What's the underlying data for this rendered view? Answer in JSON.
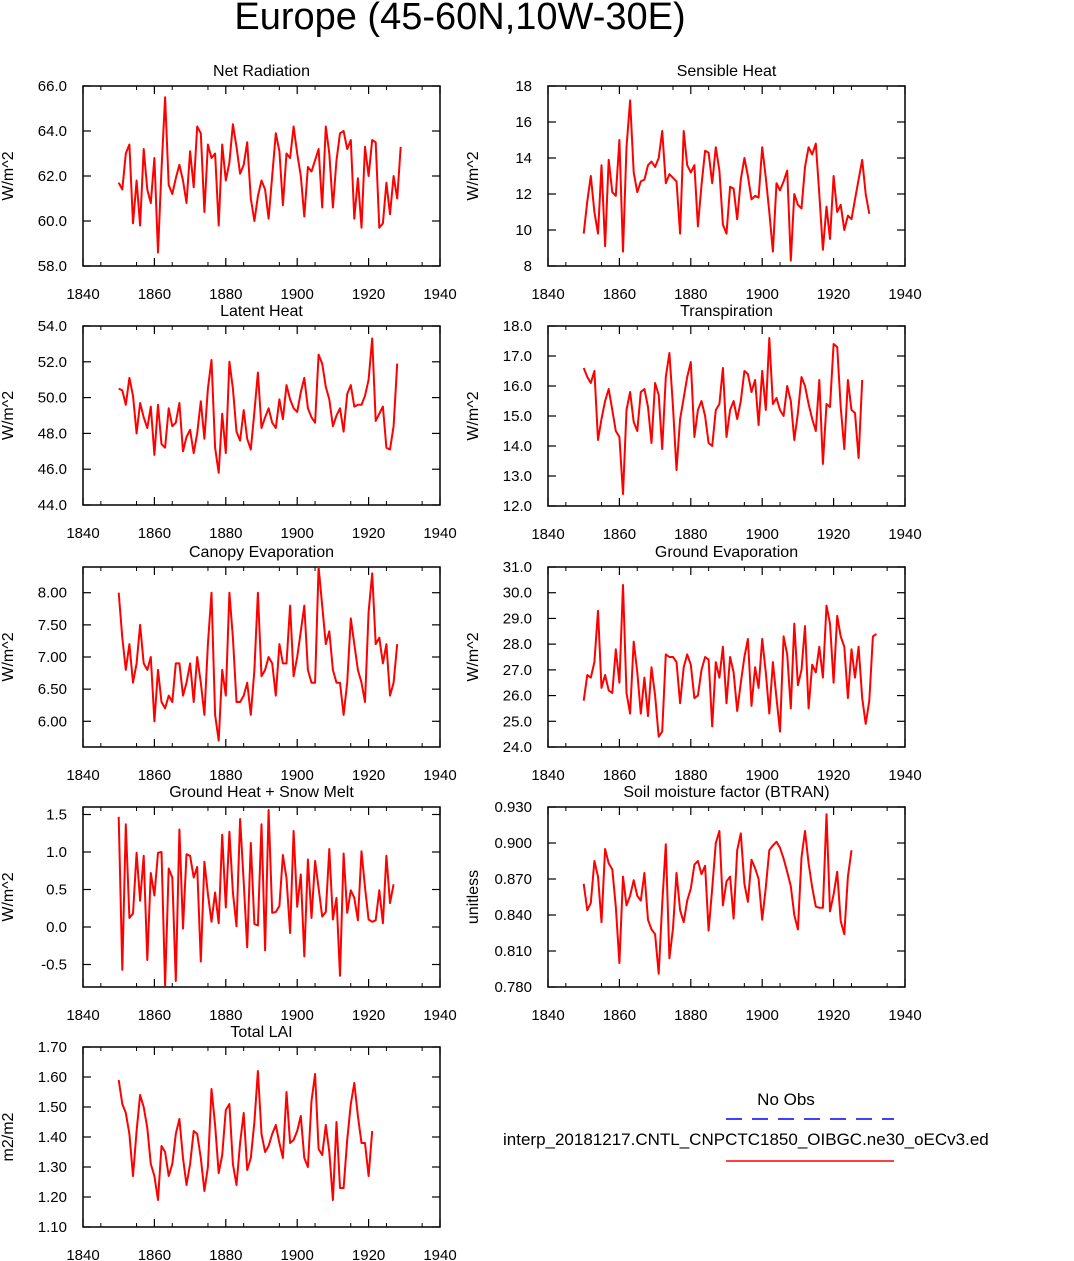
{
  "title": "Europe (45-60N,10W-30E)",
  "colors": {
    "model": "#ff0000",
    "obs": "#0000ff",
    "axis": "#000000"
  },
  "legend": {
    "obs_label": "No Obs",
    "model_label": "interp_20181217.CNTL_CNPCTC1850_OIBGC.ne30_oECv3.ed"
  },
  "chart_data": [
    {
      "type": "line",
      "title": "Net Radiation",
      "ylabel": "W/m^2",
      "xlim": [
        1840,
        1940
      ],
      "ylim": [
        58,
        66
      ],
      "xticks": [
        "1840",
        "1860",
        "1880",
        "1900",
        "1920",
        "1940"
      ],
      "yticks": [
        "58.0",
        "60.0",
        "62.0",
        "64.0",
        "66.0"
      ],
      "series": [
        {
          "name": "model",
          "x0": 1850,
          "values": [
            61.7,
            61.4,
            63.0,
            63.4,
            59.9,
            61.8,
            59.8,
            63.2,
            61.4,
            60.8,
            62.8,
            58.6,
            62.3,
            65.5,
            61.6,
            61.2,
            61.9,
            62.5,
            61.8,
            60.8,
            63.1,
            61.5,
            64.2,
            63.9,
            60.4,
            63.4,
            62.8,
            63.0,
            59.8,
            63.4,
            61.8,
            62.6,
            64.3,
            63.3,
            62.1,
            62.5,
            63.5,
            61.0,
            60.0,
            61.1,
            61.8,
            61.4,
            60.1,
            62.0,
            63.9,
            63.1,
            60.7,
            63.0,
            62.8,
            64.2,
            63.0,
            62.0,
            60.2,
            62.4,
            62.2,
            62.7,
            63.2,
            60.6,
            64.2,
            63.0,
            60.6,
            62.7,
            63.9,
            64.0,
            63.2,
            63.6,
            60.1,
            61.9,
            59.7,
            63.3,
            62.0,
            63.6,
            63.5,
            59.7,
            59.9,
            61.7,
            60.3,
            62.0,
            61.0,
            63.3
          ]
        }
      ]
    },
    {
      "type": "line",
      "title": "Sensible Heat",
      "ylabel": "W/m^2",
      "xlim": [
        1840,
        1940
      ],
      "ylim": [
        8,
        18
      ],
      "xticks": [
        "1840",
        "1860",
        "1880",
        "1900",
        "1920",
        "1940"
      ],
      "yticks": [
        "8",
        "10",
        "12",
        "14",
        "16",
        "18"
      ],
      "series": [
        {
          "name": "model",
          "x0": 1850,
          "values": [
            9.8,
            11.6,
            13.0,
            11.0,
            9.8,
            13.6,
            9.1,
            13.9,
            12.1,
            11.9,
            15.0,
            8.8,
            14.6,
            17.2,
            13.2,
            12.1,
            12.7,
            12.8,
            13.6,
            13.8,
            13.5,
            14.0,
            15.5,
            12.6,
            13.1,
            12.9,
            12.7,
            9.8,
            15.5,
            13.6,
            13.2,
            13.6,
            10.2,
            12.5,
            14.4,
            14.3,
            12.6,
            14.6,
            13.3,
            10.3,
            9.8,
            12.4,
            12.3,
            10.6,
            12.8,
            14.0,
            13.0,
            11.7,
            11.9,
            11.8,
            14.6,
            12.9,
            11.0,
            8.8,
            12.6,
            12.2,
            12.7,
            13.3,
            8.3,
            12.0,
            11.4,
            11.2,
            13.5,
            14.6,
            14.2,
            14.8,
            12.0,
            8.9,
            11.3,
            9.5,
            13.0,
            11.0,
            11.4,
            10.0,
            10.8,
            10.6,
            11.7,
            12.8,
            13.9,
            12.0,
            10.9
          ]
        }
      ]
    },
    {
      "type": "line",
      "title": "Latent Heat",
      "ylabel": "W/m^2",
      "xlim": [
        1840,
        1940
      ],
      "ylim": [
        44,
        54
      ],
      "xticks": [
        "1840",
        "1860",
        "1880",
        "1900",
        "1920",
        "1940"
      ],
      "yticks": [
        "44.0",
        "46.0",
        "48.0",
        "50.0",
        "52.0",
        "54.0"
      ],
      "series": [
        {
          "name": "model",
          "x0": 1850,
          "values": [
            50.5,
            50.4,
            49.6,
            51.1,
            50.1,
            48.0,
            49.7,
            48.9,
            48.3,
            49.5,
            46.8,
            49.6,
            47.4,
            47.2,
            49.4,
            48.4,
            48.6,
            49.7,
            47.0,
            47.8,
            48.2,
            46.9,
            48.0,
            49.8,
            47.7,
            50.5,
            52.1,
            47.2,
            45.8,
            49.1,
            46.9,
            52.0,
            50.5,
            48.1,
            47.6,
            49.3,
            47.7,
            47.1,
            49.2,
            51.4,
            48.3,
            48.9,
            49.4,
            48.6,
            48.3,
            49.9,
            48.8,
            50.7,
            49.9,
            49.4,
            49.2,
            50.3,
            51.1,
            49.4,
            48.9,
            48.6,
            52.4,
            51.9,
            50.6,
            49.9,
            48.4,
            49.0,
            49.4,
            48.1,
            50.2,
            50.7,
            49.5,
            49.6,
            49.6,
            50.1,
            51.0,
            53.3,
            48.7,
            49.1,
            49.5,
            47.2,
            47.1,
            48.4,
            51.9
          ]
        }
      ]
    },
    {
      "type": "line",
      "title": "Transpiration",
      "ylabel": "W/m^2",
      "xlim": [
        1840,
        1940
      ],
      "ylim": [
        12,
        18
      ],
      "xticks": [
        "1840",
        "1860",
        "1880",
        "1900",
        "1920",
        "1940"
      ],
      "yticks": [
        "12.0",
        "13.0",
        "14.0",
        "15.0",
        "16.0",
        "17.0",
        "18.0"
      ],
      "series": [
        {
          "name": "model",
          "x0": 1850,
          "values": [
            16.6,
            16.3,
            16.1,
            16.5,
            14.2,
            14.9,
            15.5,
            15.9,
            15.2,
            14.5,
            14.3,
            12.4,
            15.2,
            15.8,
            14.8,
            14.5,
            15.8,
            15.9,
            15.3,
            14.1,
            16.1,
            15.7,
            13.9,
            16.3,
            17.1,
            15.3,
            13.2,
            14.9,
            15.6,
            16.3,
            16.8,
            14.3,
            15.2,
            15.5,
            15.0,
            14.1,
            14.0,
            15.2,
            15.4,
            16.6,
            14.3,
            15.2,
            15.5,
            14.9,
            15.5,
            16.5,
            16.4,
            15.8,
            16.2,
            14.7,
            16.5,
            15.2,
            17.6,
            15.4,
            15.6,
            15.2,
            15.0,
            16.0,
            15.5,
            14.2,
            15.1,
            16.3,
            16.0,
            15.4,
            14.9,
            14.5,
            16.2,
            13.4,
            15.4,
            15.3,
            17.4,
            17.3,
            15.3,
            13.9,
            16.2,
            15.2,
            15.1,
            13.6,
            16.2
          ]
        }
      ]
    },
    {
      "type": "line",
      "title": "Canopy Evaporation",
      "ylabel": "W/m^2",
      "xlim": [
        1840,
        1940
      ],
      "ylim": [
        5.6,
        8.4
      ],
      "xticks": [
        "1840",
        "1860",
        "1880",
        "1900",
        "1920",
        "1940"
      ],
      "yticks": [
        "6.00",
        "6.50",
        "7.00",
        "7.50",
        "8.00"
      ],
      "series": [
        {
          "name": "model",
          "x0": 1850,
          "values": [
            8.0,
            7.3,
            6.8,
            7.2,
            6.6,
            6.9,
            7.5,
            6.9,
            6.8,
            7.0,
            6.0,
            6.8,
            6.3,
            6.2,
            6.4,
            6.3,
            6.9,
            6.9,
            6.4,
            6.6,
            6.9,
            6.3,
            7.0,
            6.6,
            6.1,
            7.2,
            8.0,
            6.1,
            5.7,
            6.8,
            6.4,
            8.0,
            7.3,
            6.3,
            6.3,
            6.4,
            6.6,
            6.1,
            6.8,
            8.0,
            6.7,
            6.8,
            7.0,
            6.9,
            6.4,
            7.2,
            6.9,
            6.9,
            7.8,
            6.7,
            7.0,
            7.4,
            7.8,
            6.8,
            6.6,
            6.6,
            8.4,
            7.8,
            7.2,
            7.4,
            6.8,
            6.6,
            6.6,
            6.1,
            6.6,
            7.6,
            7.2,
            6.8,
            6.6,
            6.3,
            7.7,
            8.3,
            7.2,
            7.3,
            6.9,
            7.2,
            6.4,
            6.6,
            7.2
          ]
        }
      ]
    },
    {
      "type": "line",
      "title": "Ground Evaporation",
      "ylabel": "W/m^2",
      "xlim": [
        1840,
        1940
      ],
      "ylim": [
        24,
        31
      ],
      "xticks": [
        "1840",
        "1860",
        "1880",
        "1900",
        "1920",
        "1940"
      ],
      "yticks": [
        "24.0",
        "25.0",
        "26.0",
        "27.0",
        "28.0",
        "29.0",
        "30.0",
        "31.0"
      ],
      "series": [
        {
          "name": "model",
          "x0": 1850,
          "values": [
            25.8,
            26.8,
            26.7,
            27.3,
            29.3,
            26.3,
            26.8,
            26.2,
            26.1,
            27.8,
            26.5,
            30.3,
            26.1,
            25.3,
            28.1,
            26.9,
            25.3,
            26.7,
            25.2,
            27.1,
            26.0,
            24.4,
            24.6,
            27.6,
            27.5,
            27.5,
            27.3,
            25.7,
            27.1,
            27.6,
            27.2,
            25.9,
            26.0,
            27.0,
            27.5,
            27.4,
            24.8,
            27.3,
            26.7,
            27.9,
            25.7,
            27.5,
            26.9,
            25.4,
            26.5,
            27.5,
            28.2,
            25.6,
            27.1,
            26.3,
            28.2,
            26.9,
            25.3,
            27.3,
            25.9,
            24.6,
            28.3,
            27.6,
            25.5,
            28.8,
            26.4,
            27.0,
            28.7,
            25.5,
            27.2,
            26.9,
            27.9,
            26.7,
            29.5,
            28.8,
            26.5,
            29.1,
            28.3,
            27.9,
            25.9,
            27.8,
            26.7,
            27.9,
            25.9,
            24.9,
            25.8,
            28.3,
            28.4
          ]
        }
      ]
    },
    {
      "type": "line",
      "title": "Ground Heat + Snow Melt",
      "ylabel": "W/m^2",
      "xlim": [
        1840,
        1940
      ],
      "ylim": [
        -0.8,
        1.6
      ],
      "xticks": [
        "1840",
        "1860",
        "1880",
        "1900",
        "1920",
        "1940"
      ],
      "yticks": [
        "-0.5",
        "0.0",
        "0.5",
        "1.0",
        "1.5"
      ],
      "series": [
        {
          "name": "model",
          "x0": 1850,
          "values": [
            1.47,
            -0.57,
            1.37,
            0.12,
            0.18,
            0.99,
            0.35,
            0.95,
            -0.44,
            0.72,
            0.42,
            0.99,
            1.0,
            -0.78,
            0.78,
            0.66,
            -0.72,
            1.3,
            -0.02,
            0.97,
            0.95,
            0.66,
            0.8,
            -0.46,
            0.87,
            0.44,
            0.07,
            0.46,
            0.05,
            1.23,
            0.26,
            1.27,
            0.46,
            0.01,
            1.44,
            0.6,
            -0.27,
            1.12,
            0.04,
            0.02,
            1.37,
            -0.31,
            1.56,
            0.19,
            0.2,
            0.28,
            0.96,
            0.65,
            -0.08,
            1.28,
            0.27,
            0.7,
            -0.39,
            0.9,
            0.12,
            0.88,
            0.52,
            0.14,
            0.2,
            1.04,
            0.1,
            0.39,
            -0.65,
            0.98,
            0.19,
            0.49,
            0.39,
            0.09,
            1.01,
            0.53,
            0.1,
            0.07,
            0.09,
            0.49,
            0.05,
            0.95,
            0.32,
            0.57
          ]
        }
      ]
    },
    {
      "type": "line",
      "title": "Soil moisture factor (BTRAN)",
      "ylabel": "unitless",
      "xlim": [
        1840,
        1940
      ],
      "ylim": [
        0.78,
        0.93
      ],
      "xticks": [
        "1840",
        "1860",
        "1880",
        "1900",
        "1920",
        "1940"
      ],
      "yticks": [
        "0.780",
        "0.810",
        "0.840",
        "0.870",
        "0.900",
        "0.930"
      ],
      "series": [
        {
          "name": "model",
          "x0": 1850,
          "values": [
            0.866,
            0.844,
            0.85,
            0.885,
            0.872,
            0.834,
            0.895,
            0.883,
            0.878,
            0.847,
            0.8,
            0.872,
            0.848,
            0.856,
            0.869,
            0.856,
            0.852,
            0.875,
            0.836,
            0.828,
            0.824,
            0.791,
            0.849,
            0.899,
            0.804,
            0.829,
            0.875,
            0.844,
            0.834,
            0.852,
            0.862,
            0.882,
            0.885,
            0.874,
            0.881,
            0.827,
            0.862,
            0.9,
            0.91,
            0.848,
            0.868,
            0.872,
            0.837,
            0.894,
            0.908,
            0.866,
            0.851,
            0.886,
            0.879,
            0.87,
            0.836,
            0.863,
            0.894,
            0.898,
            0.901,
            0.896,
            0.887,
            0.876,
            0.864,
            0.84,
            0.828,
            0.888,
            0.91,
            0.883,
            0.863,
            0.847,
            0.846,
            0.846,
            0.924,
            0.843,
            0.857,
            0.876,
            0.835,
            0.824,
            0.872,
            0.894
          ]
        }
      ]
    },
    {
      "type": "line",
      "title": "Total LAI",
      "ylabel": "m2/m2",
      "xlim": [
        1840,
        1940
      ],
      "ylim": [
        1.1,
        1.7
      ],
      "xticks": [
        "1840",
        "1860",
        "1880",
        "1900",
        "1920",
        "1940"
      ],
      "yticks": [
        "1.10",
        "1.20",
        "1.30",
        "1.40",
        "1.50",
        "1.60",
        "1.70"
      ],
      "series": [
        {
          "name": "model",
          "x0": 1850,
          "values": [
            1.59,
            1.51,
            1.48,
            1.41,
            1.27,
            1.42,
            1.54,
            1.5,
            1.43,
            1.31,
            1.27,
            1.19,
            1.37,
            1.35,
            1.27,
            1.31,
            1.41,
            1.46,
            1.33,
            1.24,
            1.31,
            1.42,
            1.41,
            1.33,
            1.22,
            1.3,
            1.56,
            1.44,
            1.28,
            1.34,
            1.49,
            1.51,
            1.31,
            1.24,
            1.38,
            1.48,
            1.29,
            1.33,
            1.45,
            1.62,
            1.41,
            1.35,
            1.37,
            1.41,
            1.44,
            1.38,
            1.33,
            1.55,
            1.38,
            1.39,
            1.42,
            1.47,
            1.33,
            1.3,
            1.52,
            1.61,
            1.36,
            1.34,
            1.44,
            1.35,
            1.19,
            1.45,
            1.23,
            1.23,
            1.39,
            1.51,
            1.58,
            1.47,
            1.38,
            1.38,
            1.27,
            1.42
          ]
        }
      ]
    }
  ]
}
